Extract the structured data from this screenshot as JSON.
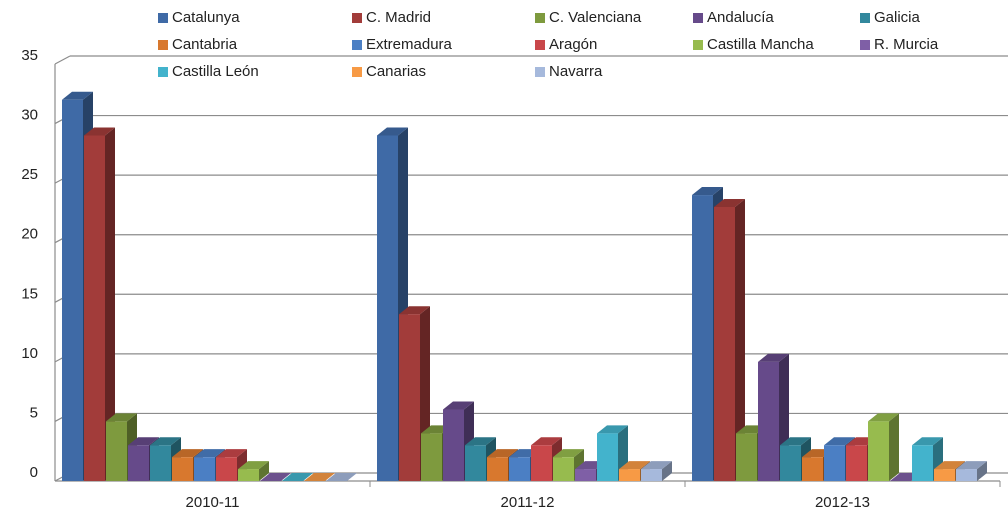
{
  "chart_data": {
    "type": "bar3d",
    "categories": [
      "2010-11",
      "2011-12",
      "2012-13"
    ],
    "series": [
      {
        "name": "Catalunya",
        "color": "#3f6aa6",
        "values": [
          32,
          29,
          24
        ]
      },
      {
        "name": "C. Madrid",
        "color": "#a23c3a",
        "values": [
          29,
          14,
          23
        ]
      },
      {
        "name": "C. Valenciana",
        "color": "#7e9a3e",
        "values": [
          5,
          4,
          4
        ]
      },
      {
        "name": "Andalucía",
        "color": "#664a8a",
        "values": [
          3,
          6,
          10
        ]
      },
      {
        "name": "Galicia",
        "color": "#32889d",
        "values": [
          3,
          3,
          3
        ]
      },
      {
        "name": "Cantabria",
        "color": "#d8782e",
        "values": [
          2,
          2,
          2
        ]
      },
      {
        "name": "Extremadura",
        "color": "#4b7fc4",
        "values": [
          2,
          2,
          3
        ]
      },
      {
        "name": "Aragón",
        "color": "#c9474a",
        "values": [
          2,
          3,
          3
        ]
      },
      {
        "name": "Castilla Mancha",
        "color": "#97bb4e",
        "values": [
          1,
          2,
          5
        ]
      },
      {
        "name": "R. Murcia",
        "color": "#7f5fa6",
        "values": [
          0,
          1,
          0
        ]
      },
      {
        "name": "Castilla León",
        "color": "#43b3cc",
        "values": [
          0,
          4,
          3
        ]
      },
      {
        "name": "Canarias",
        "color": "#f79a45",
        "values": [
          0,
          1,
          1
        ]
      },
      {
        "name": "Navarra",
        "color": "#a6b9dc",
        "values": [
          0,
          1,
          1
        ]
      }
    ],
    "ylim": [
      0,
      35
    ],
    "yticks": [
      0,
      5,
      10,
      15,
      20,
      25,
      30,
      35
    ],
    "grid": true,
    "legend": "top"
  }
}
